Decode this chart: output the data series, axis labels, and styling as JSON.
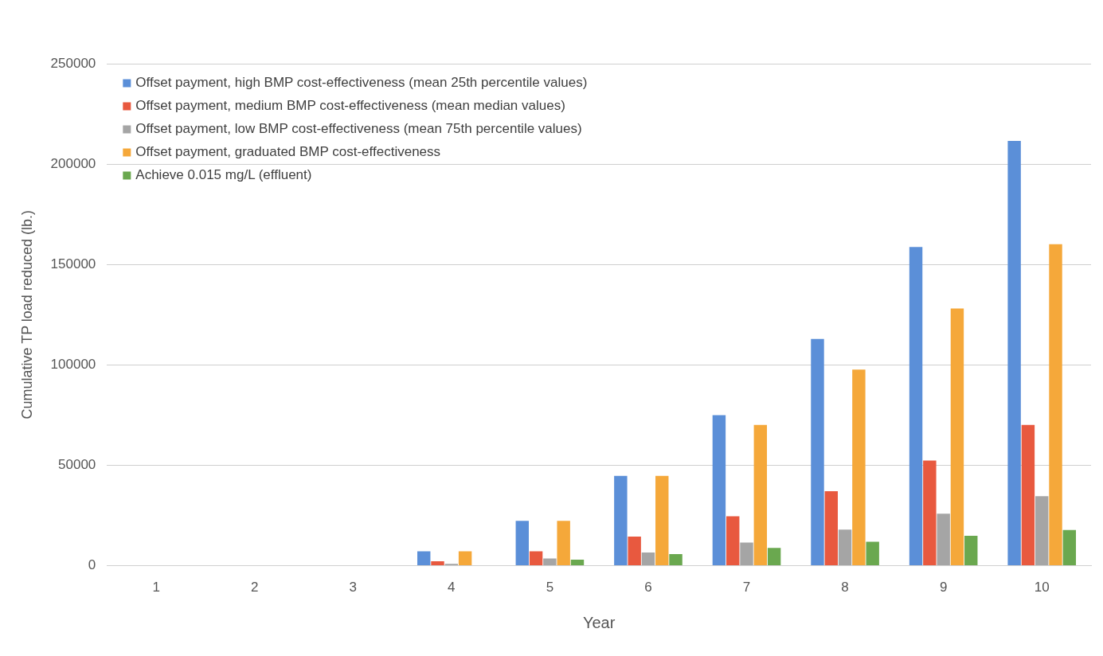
{
  "chart_data": {
    "type": "bar",
    "xlabel": "Year",
    "ylabel": "Cumulative TP load reduced (lb.)",
    "categories": [
      "1",
      "2",
      "3",
      "4",
      "5",
      "6",
      "7",
      "8",
      "9",
      "10"
    ],
    "series": [
      {
        "name": "Offset payment, high BMP cost-effectiveness (mean 25th percentile values)",
        "color": "#5b8fd8",
        "values": [
          0,
          0,
          0,
          7200,
          22300,
          44700,
          75000,
          112900,
          158700,
          211500
        ]
      },
      {
        "name": "Offset payment, medium BMP cost-effectiveness (mean median values)",
        "color": "#e8593f",
        "values": [
          0,
          0,
          0,
          2200,
          7200,
          14500,
          24600,
          37100,
          52400,
          70100
        ]
      },
      {
        "name": "Offset payment, low BMP cost-effectiveness (mean 75th percentile values)",
        "color": "#a5a5a5",
        "values": [
          0,
          0,
          0,
          900,
          3600,
          6600,
          11500,
          18000,
          25900,
          34600
        ]
      },
      {
        "name": "Offset payment, graduated BMP cost-effectiveness",
        "color": "#f5a83a",
        "values": [
          0,
          0,
          0,
          7200,
          22300,
          44700,
          70100,
          97700,
          128100,
          160100
        ]
      },
      {
        "name": "Achieve 0.015 mg/L (effluent)",
        "color": "#6aa84f",
        "values": [
          0,
          0,
          0,
          0,
          3000,
          5800,
          8900,
          11900,
          14900,
          17800
        ]
      }
    ],
    "ylim": [
      0,
      250000
    ],
    "yticks": [
      0,
      50000,
      100000,
      150000,
      200000,
      250000
    ],
    "grid": "y",
    "legend": "top left"
  }
}
